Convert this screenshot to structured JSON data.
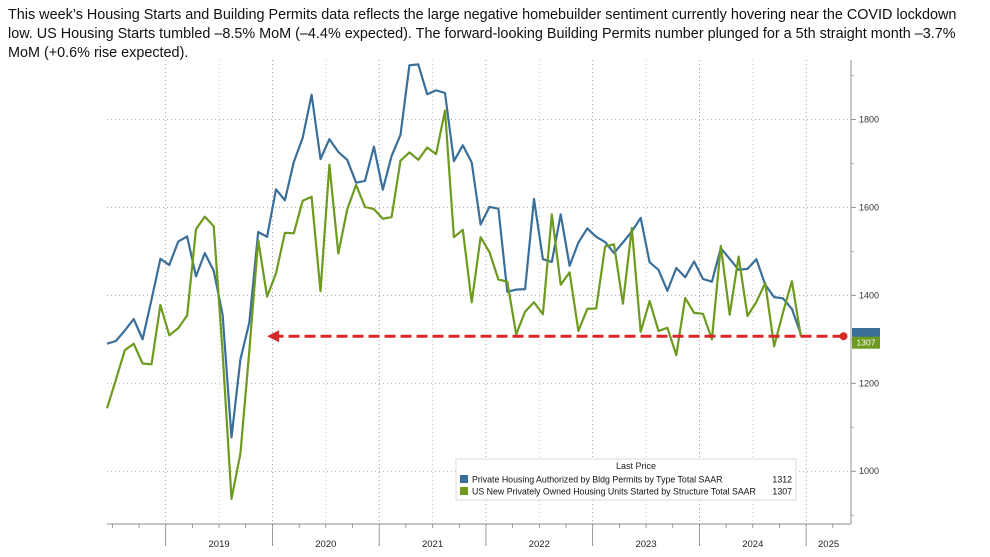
{
  "caption": "This week’s Housing Starts and Building Permits data reflects the large negative homebuilder sentiment currently hovering near the COVID lockdown low.  US Housing Starts tumbled –8.5% MoM (–4.4% expected).  The forward-looking Building Permits number plunged for a 5th straight month –3.7% MoM (+0.6% rise expected).",
  "chart_data": {
    "type": "line",
    "ylim": [
      880,
      1935
    ],
    "yticks": [
      1000,
      1200,
      1400,
      1600,
      1800
    ],
    "xlim": [
      2018.45,
      2025.42
    ],
    "year_labels": [
      "2019",
      "2020",
      "2021",
      "2022",
      "2023",
      "2024",
      "2025"
    ],
    "legend": {
      "title": "Last Price",
      "placement": "bottom-right"
    },
    "series": [
      {
        "name": "Private Housing Authorized by Bldg Permits by Type Total SAAR",
        "last_value": "1312",
        "color": "#3a6f9a",
        "start": 2018.45,
        "values": [
          1290,
          1296,
          1320,
          1346,
          1300,
          1390,
          1483,
          1469,
          1522,
          1534,
          1443,
          1496,
          1456,
          1356,
          1077,
          1254,
          1338,
          1544,
          1533,
          1641,
          1616,
          1703,
          1758,
          1856,
          1710,
          1755,
          1726,
          1708,
          1656,
          1660,
          1738,
          1640,
          1717,
          1765,
          1923,
          1925,
          1857,
          1866,
          1860,
          1705,
          1741,
          1702,
          1561,
          1601,
          1597,
          1408,
          1413,
          1414,
          1619,
          1482,
          1476,
          1584,
          1467,
          1520,
          1552,
          1533,
          1521,
          1496,
          1520,
          1545,
          1576,
          1475,
          1458,
          1410,
          1462,
          1441,
          1477,
          1437,
          1431,
          1507,
          1483,
          1458,
          1460,
          1482,
          1424,
          1396,
          1393,
          1369,
          1312
        ]
      },
      {
        "name": "US New Privately Owned Housing Units Started by Structure Total SAAR",
        "last_value": "1307",
        "color": "#6d9a1f",
        "start": 2018.45,
        "values": [
          1143,
          1208,
          1275,
          1290,
          1245,
          1243,
          1378,
          1309,
          1325,
          1354,
          1550,
          1579,
          1557,
          1270,
          937,
          1040,
          1273,
          1525,
          1397,
          1450,
          1542,
          1541,
          1615,
          1624,
          1409,
          1697,
          1495,
          1595,
          1651,
          1601,
          1596,
          1574,
          1578,
          1706,
          1725,
          1708,
          1736,
          1721,
          1820,
          1532,
          1549,
          1384,
          1532,
          1498,
          1436,
          1431,
          1311,
          1363,
          1384,
          1357,
          1584,
          1424,
          1452,
          1319,
          1369,
          1370,
          1511,
          1516,
          1381,
          1553,
          1317,
          1387,
          1319,
          1326,
          1264,
          1394,
          1360,
          1358,
          1300,
          1512,
          1356,
          1488,
          1353,
          1385,
          1428,
          1284,
          1361,
          1432,
          1307
        ]
      }
    ],
    "annotation": {
      "type": "arrow",
      "value": 1307,
      "color": "#d62a2a",
      "from_x": 2025.35,
      "to_x": 2019.95
    }
  }
}
